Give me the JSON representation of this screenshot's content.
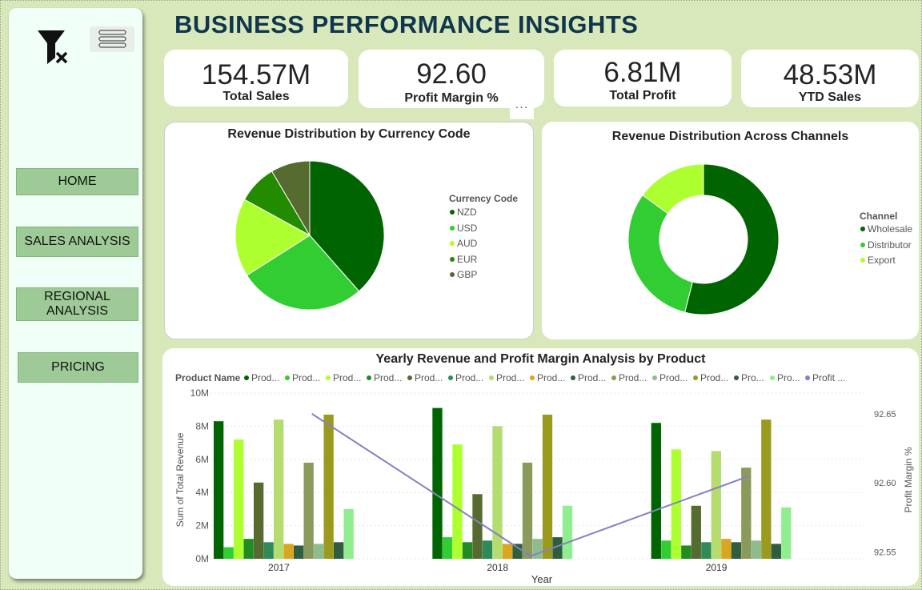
{
  "title": "BUSINESS PERFORMANCE INSIGHTS",
  "nav": {
    "home": "HOME",
    "sales": "SALES ANALYSIS",
    "regional_line1": "REGIONAL",
    "regional_line2": "ANALYSIS",
    "pricing": "PRICING"
  },
  "kpis": [
    {
      "value": "154.57M",
      "label": "Total Sales"
    },
    {
      "value": "92.60",
      "label": "Profit Margin %"
    },
    {
      "value": "6.81M",
      "label": "Total Profit"
    },
    {
      "value": "48.53M",
      "label": "YTD Sales"
    }
  ],
  "more_label": "···",
  "colors": {
    "background": "#d9e8bb",
    "title": "#10364e",
    "nav_button": "#9dca96",
    "line": "#8a7fbf"
  },
  "icons": {
    "filter": "clear-filter-icon",
    "menu": "hamburger-menu-icon",
    "more": "more-options-icon"
  },
  "chart_data": [
    {
      "type": "pie",
      "title": "Revenue Distribution by Currency Code",
      "legend_title": "Currency Code",
      "legend_position": "right",
      "categories": [
        "NZD",
        "USD",
        "AUD",
        "EUR",
        "GBP"
      ],
      "values": [
        38.5,
        27.5,
        17.0,
        8.5,
        8.5
      ],
      "colors": [
        "#006400",
        "#32cd32",
        "#adff2f",
        "#228b00",
        "#556b2f"
      ]
    },
    {
      "type": "pie",
      "donut": true,
      "title": "Revenue Distribution Across Channels",
      "legend_title": "Channel",
      "legend_position": "right",
      "categories": [
        "Wholesale",
        "Distributor",
        "Export"
      ],
      "values": [
        54,
        31,
        15
      ],
      "colors": [
        "#006400",
        "#32cd32",
        "#adff2f"
      ]
    },
    {
      "type": "bar",
      "title": "Yearly Revenue and Profit Margin Analysis by Product",
      "legend_title": "Product Name",
      "legend_position": "top",
      "legend_labels": [
        "Prod...",
        "Prod...",
        "Prod...",
        "Prod...",
        "Prod...",
        "Prod...",
        "Prod...",
        "Prod...",
        "Prod...",
        "Prod...",
        "Prod...",
        "Prod...",
        "Pro...",
        "Pro...",
        "Profit ..."
      ],
      "xlabel": "Year",
      "ylabel": "Sum of Total Revenue",
      "y2label": "Profit Margin %",
      "categories": [
        "2017",
        "2018",
        "2019"
      ],
      "ylim": [
        0,
        10
      ],
      "y_ticks": [
        "0M",
        "2M",
        "4M",
        "6M",
        "8M",
        "10M"
      ],
      "y2lim": [
        92.545,
        92.665
      ],
      "y2_ticks": [
        "92.55",
        "92.60",
        "92.65"
      ],
      "series_colors": [
        "#006400",
        "#32cd32",
        "#adff2f",
        "#228b22",
        "#556b2f",
        "#2e8b57",
        "#b5dc6f",
        "#daa520",
        "#2f5f3f",
        "#8a9a5b",
        "#8fbc8f",
        "#9a9a1e",
        "#2e5e3e",
        "#90ee90"
      ],
      "series": [
        {
          "values": [
            8.3,
            9.1,
            8.2
          ]
        },
        {
          "values": [
            0.7,
            1.3,
            1.1
          ]
        },
        {
          "values": [
            7.2,
            6.9,
            6.6
          ]
        },
        {
          "values": [
            1.2,
            1.0,
            0.8
          ]
        },
        {
          "values": [
            4.6,
            3.9,
            3.2
          ]
        },
        {
          "values": [
            1.0,
            1.1,
            1.0
          ]
        },
        {
          "values": [
            8.4,
            8.0,
            6.5
          ]
        },
        {
          "values": [
            0.9,
            0.9,
            1.2
          ]
        },
        {
          "values": [
            0.8,
            0.9,
            1.0
          ]
        },
        {
          "values": [
            5.8,
            5.8,
            5.5
          ]
        },
        {
          "values": [
            0.9,
            1.2,
            1.1
          ]
        },
        {
          "values": [
            8.7,
            8.7,
            8.4
          ]
        },
        {
          "values": [
            1.0,
            1.3,
            0.9
          ]
        },
        {
          "values": [
            3.0,
            3.2,
            3.1
          ]
        }
      ],
      "line": {
        "values": [
          92.65,
          92.547,
          92.605
        ],
        "color": "#8a7fbf"
      }
    }
  ]
}
